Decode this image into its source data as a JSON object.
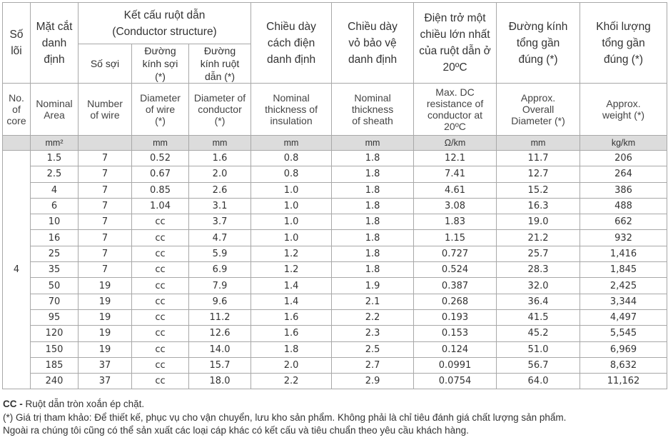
{
  "headers": {
    "core_vn": "Số lõi",
    "area_vn": "Mặt cắt danh định",
    "structure_vn": "Kết cấu ruột dẫn",
    "structure_en": "(Conductor structure)",
    "num_wire_vn": "Số sợi",
    "wire_dia_vn": "Đường kính sợi (*)",
    "cond_dia_vn": "Đường kính ruột dẫn (*)",
    "insul_vn": "Chiều dày cách điện danh định",
    "sheath_vn": "Chiều dày vỏ bảo vệ danh định",
    "resist_vn": "Điện trở một chiều lớn nhất của ruột dẫn ở 20ºC",
    "overall_vn": "Đường kính tổng gần đúng (*)",
    "weight_vn": "Khối lượng tổng gần đúng (*)",
    "core_en": "No. of core",
    "area_en": "Nominal Area",
    "num_wire_en": "Number of wire",
    "wire_dia_en": "Diameter of wire (*)",
    "cond_dia_en": "Diameter of conductor (*)",
    "insul_en": "Nominal thickness of insulation",
    "sheath_en": "Nominal thickness of sheath",
    "resist_en": "Max. DC resistance of conductor at 20ºC",
    "overall_en": "Approx. Overall Diameter (*)",
    "weight_en": "Approx. weight (*)"
  },
  "units": {
    "core": "",
    "area": "mm²",
    "num_wire": "",
    "wire_dia": "mm",
    "cond_dia": "mm",
    "insul": "mm",
    "sheath": "mm",
    "resist": "Ω/km",
    "overall": "mm",
    "weight": "kg/km"
  },
  "core_count": "4",
  "rows": [
    {
      "area": "1.5",
      "wires": "7",
      "wire_dia": "0.52",
      "cond_dia": "1.6",
      "insul": "0.8",
      "sheath": "1.8",
      "resist": "12.1",
      "overall": "11.7",
      "weight": "206"
    },
    {
      "area": "2.5",
      "wires": "7",
      "wire_dia": "0.67",
      "cond_dia": "2.0",
      "insul": "0.8",
      "sheath": "1.8",
      "resist": "7.41",
      "overall": "12.7",
      "weight": "264"
    },
    {
      "area": "4",
      "wires": "7",
      "wire_dia": "0.85",
      "cond_dia": "2.6",
      "insul": "1.0",
      "sheath": "1.8",
      "resist": "4.61",
      "overall": "15.2",
      "weight": "386"
    },
    {
      "area": "6",
      "wires": "7",
      "wire_dia": "1.04",
      "cond_dia": "3.1",
      "insul": "1.0",
      "sheath": "1.8",
      "resist": "3.08",
      "overall": "16.3",
      "weight": "488"
    },
    {
      "area": "10",
      "wires": "7",
      "wire_dia": "cc",
      "cond_dia": "3.7",
      "insul": "1.0",
      "sheath": "1.8",
      "resist": "1.83",
      "overall": "19.0",
      "weight": "662"
    },
    {
      "area": "16",
      "wires": "7",
      "wire_dia": "cc",
      "cond_dia": "4.7",
      "insul": "1.0",
      "sheath": "1.8",
      "resist": "1.15",
      "overall": "21.2",
      "weight": "932"
    },
    {
      "area": "25",
      "wires": "7",
      "wire_dia": "cc",
      "cond_dia": "5.9",
      "insul": "1.2",
      "sheath": "1.8",
      "resist": "0.727",
      "overall": "25.7",
      "weight": "1,416"
    },
    {
      "area": "35",
      "wires": "7",
      "wire_dia": "cc",
      "cond_dia": "6.9",
      "insul": "1.2",
      "sheath": "1.8",
      "resist": "0.524",
      "overall": "28.3",
      "weight": "1,845"
    },
    {
      "area": "50",
      "wires": "19",
      "wire_dia": "cc",
      "cond_dia": "7.9",
      "insul": "1.4",
      "sheath": "1.9",
      "resist": "0.387",
      "overall": "32.0",
      "weight": "2,425"
    },
    {
      "area": "70",
      "wires": "19",
      "wire_dia": "cc",
      "cond_dia": "9.6",
      "insul": "1.4",
      "sheath": "2.1",
      "resist": "0.268",
      "overall": "36.4",
      "weight": "3,344"
    },
    {
      "area": "95",
      "wires": "19",
      "wire_dia": "cc",
      "cond_dia": "11.2",
      "insul": "1.6",
      "sheath": "2.2",
      "resist": "0.193",
      "overall": "41.5",
      "weight": "4,497"
    },
    {
      "area": "120",
      "wires": "19",
      "wire_dia": "cc",
      "cond_dia": "12.6",
      "insul": "1.6",
      "sheath": "2.3",
      "resist": "0.153",
      "overall": "45.2",
      "weight": "5,545"
    },
    {
      "area": "150",
      "wires": "19",
      "wire_dia": "cc",
      "cond_dia": "14.0",
      "insul": "1.8",
      "sheath": "2.5",
      "resist": "0.124",
      "overall": "51.0",
      "weight": "6,969"
    },
    {
      "area": "185",
      "wires": "37",
      "wire_dia": "cc",
      "cond_dia": "15.7",
      "insul": "2.0",
      "sheath": "2.7",
      "resist": "0.0991",
      "overall": "56.7",
      "weight": "8,632"
    },
    {
      "area": "240",
      "wires": "37",
      "wire_dia": "cc",
      "cond_dia": "18.0",
      "insul": "2.2",
      "sheath": "2.9",
      "resist": "0.0754",
      "overall": "64.0",
      "weight": "11,162"
    }
  ],
  "notes": {
    "cc_label": "CC -",
    "cc_text": " Ruột dẫn tròn xoắn ép chặt.",
    "ref": "(*) Giá trị tham khảo: Để thiết kế, phục vụ cho vận chuyển, lưu kho sản phẩm. Không phải là chỉ tiêu đánh giá chất lượng sản phẩm.",
    "other": "Ngoài ra chúng tôi cũng có thể sản xuất các loại cáp khác có kết cấu và tiêu chuẩn theo yêu cầu khách hàng."
  }
}
